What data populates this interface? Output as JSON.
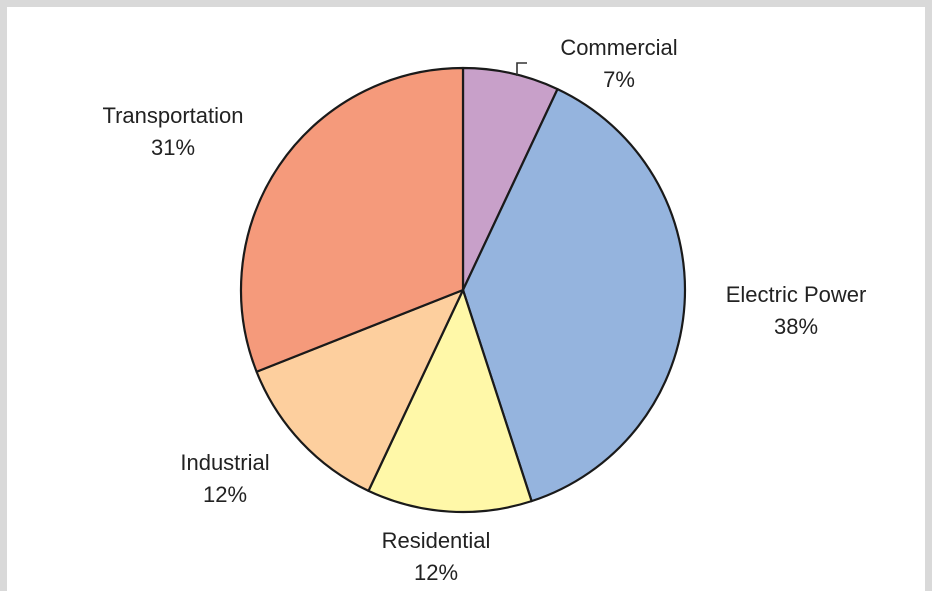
{
  "chart_data": {
    "type": "pie",
    "title": "",
    "start_angle_deg": 0,
    "direction": "clockwise",
    "slices": [
      {
        "label": "Commercial",
        "percent_label": "7%",
        "value": 7,
        "color": "#c8a0c9"
      },
      {
        "label": "Electric Power",
        "percent_label": "38%",
        "value": 38,
        "color": "#95b4de"
      },
      {
        "label": "Residential",
        "percent_label": "12%",
        "value": 12,
        "color": "#fff8a8"
      },
      {
        "label": "Industrial",
        "percent_label": "12%",
        "value": 12,
        "color": "#fdcf9e"
      },
      {
        "label": "Transportation",
        "percent_label": "31%",
        "value": 31,
        "color": "#f59a7b"
      }
    ]
  }
}
